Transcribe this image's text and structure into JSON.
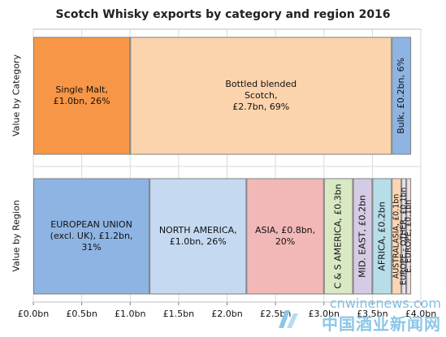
{
  "chart_data": {
    "type": "bar",
    "orientation": "horizontal-stacked",
    "title": "Scotch Whisky exports by category and region 2016",
    "xlim": [
      0,
      4
    ],
    "x_ticks": [
      "£0.0bn",
      "£0.5bn",
      "£1.0bn",
      "£1.5bn",
      "£2.0bn",
      "£2.5bn",
      "£3.0bn",
      "£3.5bn",
      "£4.0bn"
    ],
    "grid": true,
    "rows": [
      {
        "name": "Value by Category",
        "segments": [
          {
            "label": "Single Malt,\n£1.0bn, 26%",
            "value": 1.0,
            "color": "#f79646",
            "text_orient": "horizontal"
          },
          {
            "label": "Bottled blended\nScotch,\n£2.7bn, 69%",
            "value": 2.7,
            "color": "#fbd3ac",
            "text_orient": "horizontal"
          },
          {
            "label": "Bulk, £0.2bn, 6%",
            "value": 0.2,
            "color": "#8db4e2",
            "text_orient": "vertical"
          }
        ]
      },
      {
        "name": "Value by Region",
        "segments": [
          {
            "label": "EUROPEAN UNION\n(excl. UK), £1.2bn,\n31%",
            "value": 1.2,
            "color": "#8db4e2",
            "text_orient": "horizontal"
          },
          {
            "label": "NORTH AMERICA,\n£1.0bn, 26%",
            "value": 1.0,
            "color": "#c5d9f1",
            "text_orient": "horizontal"
          },
          {
            "label": "ASIA, £0.8bn,\n20%",
            "value": 0.8,
            "color": "#f2b7b7",
            "text_orient": "horizontal"
          },
          {
            "label": "C & S AMERICA, £0.3bn",
            "value": 0.3,
            "color": "#d8e9c3",
            "text_orient": "vertical"
          },
          {
            "label": "MID. EAST, £0.2bn",
            "value": 0.2,
            "color": "#d6cbe4",
            "text_orient": "vertical"
          },
          {
            "label": "AFRICA, £0.2bn",
            "value": 0.2,
            "color": "#b7dde8",
            "text_orient": "vertical"
          },
          {
            "label": "AUSTRALASIA, £0.1bn",
            "value": 0.1,
            "color": "#fcd5b4",
            "text_orient": "vertical"
          },
          {
            "label": "EUROPE - OTHER, £0.1bn",
            "value": 0.05,
            "color": "#e6e0ec",
            "text_orient": "vertical"
          },
          {
            "label": "E. EUROPE, £0.1bn",
            "value": 0.05,
            "color": "#f2dcdb",
            "text_orient": "vertical"
          }
        ]
      }
    ]
  },
  "watermark": {
    "site": "cnwinenews.com",
    "cn": "中国酒业新闻网"
  }
}
